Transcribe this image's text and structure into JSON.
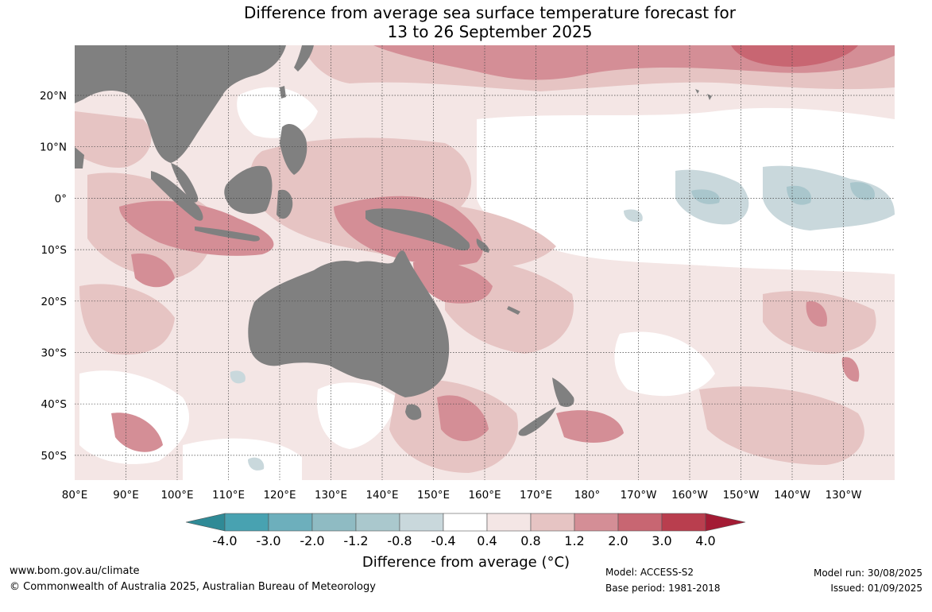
{
  "header": {
    "title_line1": "Difference from average sea surface temperature forecast for",
    "title_line2": "13 to 26 September 2025"
  },
  "map": {
    "lat_labels": [
      "20°N",
      "10°N",
      "0°",
      "10°S",
      "20°S",
      "30°S",
      "40°S",
      "50°S"
    ],
    "lon_labels": [
      "80°E",
      "90°E",
      "100°E",
      "110°E",
      "120°E",
      "130°E",
      "140°E",
      "150°E",
      "160°E",
      "170°E",
      "180°",
      "170°W",
      "160°W",
      "150°W",
      "140°W",
      "130°W"
    ],
    "colors": {
      "land": "#808080",
      "ocean_neutral": "#ffffff",
      "warm_1": "#f4e6e5",
      "warm_2": "#e6c4c3",
      "warm_3": "#d48e96",
      "warm_4": "#c86672",
      "warm_5": "#b93e4e",
      "cool_1": "#c9d8dc",
      "cool_2": "#a9c6cc",
      "gridline": "#333333"
    }
  },
  "colorbar": {
    "tick_labels": [
      "-4.0",
      "-3.0",
      "-2.0",
      "-1.2",
      "-0.8",
      "-0.4",
      "0.4",
      "0.8",
      "1.2",
      "2.0",
      "3.0",
      "4.0"
    ],
    "swatch_colors": [
      "#2f8a96",
      "#48a2b1",
      "#6dafbc",
      "#8fbbc3",
      "#aac8cd",
      "#c9d8dc",
      "#ffffff",
      "#f4e6e5",
      "#e6c4c3",
      "#d48e96",
      "#c86672",
      "#b93e4e",
      "#a31b34"
    ],
    "title": "Difference from average (°C)"
  },
  "footer": {
    "website": "www.bom.gov.au/climate",
    "copyright": "© Commonwealth of Australia 2025, Australian Bureau of Meteorology",
    "model": "Model: ACCESS-S2",
    "base_period": "Base period: 1981-2018",
    "model_run": "Model run: 30/08/2025",
    "issued": "Issued: 01/09/2025"
  }
}
